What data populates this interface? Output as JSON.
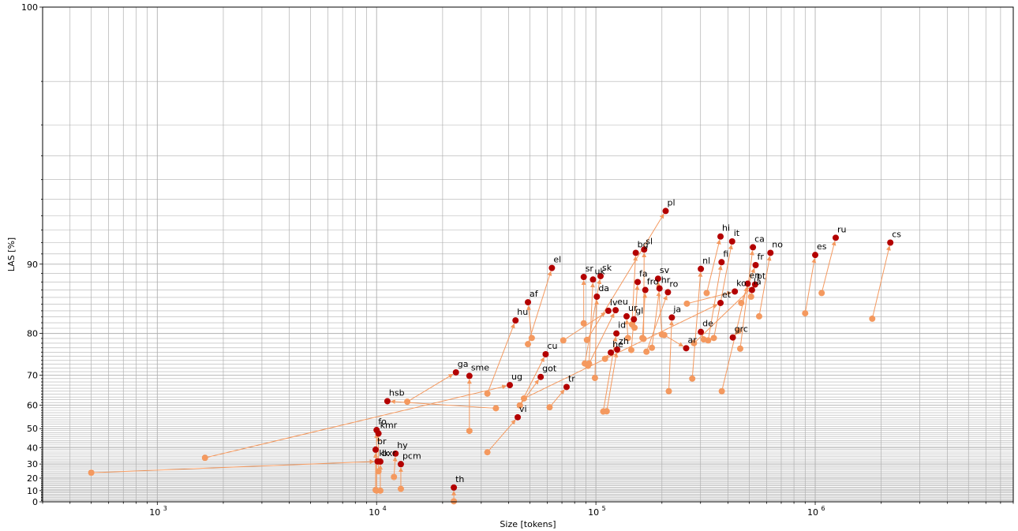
{
  "chart_data": {
    "type": "scatter",
    "title": "",
    "xlabel": "Size [tokens]",
    "ylabel": "LAS [%]",
    "xscale": "log",
    "yscale": "log-reversed",
    "xlim": [
      300,
      8000000
    ],
    "ylim": [
      0,
      100
    ],
    "grid": true,
    "legend": "none",
    "colors": {
      "before": "#f4995f",
      "after": "#b30000",
      "arrow": "#f4995f"
    },
    "x_ticks": [
      {
        "value": 1000,
        "base": "10",
        "exp": "3"
      },
      {
        "value": 10000,
        "base": "10",
        "exp": "4"
      },
      {
        "value": 100000,
        "base": "10",
        "exp": "5"
      },
      {
        "value": 1000000,
        "base": "10",
        "exp": "6"
      }
    ],
    "y_ticks": [
      {
        "value": 0,
        "label": "0"
      },
      {
        "value": 10,
        "label": "10"
      },
      {
        "value": 20,
        "label": "20"
      },
      {
        "value": 30,
        "label": "30"
      },
      {
        "value": 40,
        "label": "40"
      },
      {
        "value": 50,
        "label": "50"
      },
      {
        "value": 60,
        "label": "60"
      },
      {
        "value": 70,
        "label": "70"
      },
      {
        "value": 80,
        "label": "80"
      },
      {
        "value": 90,
        "label": "90"
      },
      {
        "value": 100,
        "label": "100"
      }
    ],
    "points": [
      {
        "label": "pl",
        "before": [
          91000,
          78.7
        ],
        "after": [
          208000,
          94.3
        ]
      },
      {
        "label": "sl",
        "before": [
          165000,
          78.9
        ],
        "after": [
          166000,
          91.4
        ]
      },
      {
        "label": "bg",
        "before": [
          146000,
          81.7
        ],
        "after": [
          152000,
          91.1
        ]
      },
      {
        "label": "hi",
        "before": [
          320000,
          86.6
        ],
        "after": [
          370000,
          92.5
        ]
      },
      {
        "label": "it",
        "before": [
          345000,
          79.1
        ],
        "after": [
          418000,
          92.1
        ]
      },
      {
        "label": "ca",
        "before": [
          455000,
          76.8
        ],
        "after": [
          520000,
          91.6
        ]
      },
      {
        "label": "no",
        "before": [
          555000,
          83.1
        ],
        "after": [
          625000,
          91.1
        ]
      },
      {
        "label": "ru",
        "before": [
          1070000,
          86.6
        ],
        "after": [
          1240000,
          92.4
        ]
      },
      {
        "label": "cs",
        "before": [
          1820000,
          82.7
        ],
        "after": [
          2200000,
          92.0
        ]
      },
      {
        "label": "es",
        "before": [
          900000,
          83.6
        ],
        "after": [
          1000000,
          90.9
        ]
      },
      {
        "label": "el",
        "before": [
          49000,
          77.8
        ],
        "after": [
          63000,
          89.6
        ]
      },
      {
        "label": "sr",
        "before": [
          88000,
          81.9
        ],
        "after": [
          88000,
          88.6
        ]
      },
      {
        "label": "uk",
        "before": [
          93000,
          73.2
        ],
        "after": [
          97000,
          88.3
        ]
      },
      {
        "label": "sk",
        "before": [
          89000,
          73.2
        ],
        "after": [
          105000,
          88.7
        ]
      },
      {
        "label": "da",
        "before": [
          99000,
          69.2
        ],
        "after": [
          101000,
          86.1
        ]
      },
      {
        "label": "fa",
        "before": [
          150000,
          81.1
        ],
        "after": [
          155000,
          88.0
        ]
      },
      {
        "label": "fro",
        "before": [
          163000,
          79.1
        ],
        "after": [
          168000,
          87.0
        ]
      },
      {
        "label": "sv",
        "before": [
          200000,
          79.8
        ],
        "after": [
          192000,
          88.4
        ]
      },
      {
        "label": "hr",
        "before": [
          180000,
          77.0
        ],
        "after": [
          195000,
          87.2
        ]
      },
      {
        "label": "ro",
        "before": [
          170000,
          76.1
        ],
        "after": [
          213000,
          86.7
        ]
      },
      {
        "label": "nl",
        "before": [
          275000,
          69.0
        ],
        "after": [
          301000,
          89.5
        ]
      },
      {
        "label": "fi",
        "before": [
          325000,
          78.6
        ],
        "after": [
          374000,
          90.2
        ]
      },
      {
        "label": "fr",
        "before": [
          460000,
          85.2
        ],
        "after": [
          535000,
          89.9
        ]
      },
      {
        "label": "pt",
        "before": [
          280000,
          78.0
        ],
        "after": [
          532000,
          87.7
        ]
      },
      {
        "label": "en",
        "before": [
          375000,
          65.0
        ],
        "after": [
          492000,
          87.8
        ]
      },
      {
        "label": "ko",
        "before": [
          260000,
          85.1
        ],
        "after": [
          430000,
          86.8
        ]
      },
      {
        "label": "la",
        "before": [
          510000,
          86.1
        ],
        "after": [
          515000,
          87.0
        ]
      },
      {
        "label": "et",
        "before": [
          47000,
          62.5
        ],
        "after": [
          370000,
          85.2
        ]
      },
      {
        "label": "af",
        "before": [
          51000,
          79.1
        ],
        "after": [
          49000,
          85.3
        ]
      },
      {
        "label": "hu",
        "before": [
          32000,
          64.2
        ],
        "after": [
          43000,
          82.4
        ]
      },
      {
        "label": "lv",
        "before": [
          71000,
          78.6
        ],
        "after": [
          114000,
          84.0
        ]
      },
      {
        "label": "eu",
        "before": [
          92000,
          72.6
        ],
        "after": [
          123000,
          84.1
        ]
      },
      {
        "label": "ur",
        "before": [
          140000,
          79.1
        ],
        "after": [
          138000,
          83.1
        ]
      },
      {
        "label": "gl",
        "before": [
          145000,
          76.5
        ],
        "after": [
          149000,
          82.6
        ]
      },
      {
        "label": "ja",
        "before": [
          215000,
          65.0
        ],
        "after": [
          222000,
          82.9
        ]
      },
      {
        "label": "id",
        "before": [
          108000,
          57.5
        ],
        "after": [
          124000,
          80.0
        ]
      },
      {
        "label": "de",
        "before": [
          310000,
          78.8
        ],
        "after": [
          301000,
          80.3
        ]
      },
      {
        "label": "grc",
        "before": [
          446000,
          80.5
        ],
        "after": [
          421000,
          79.2
        ]
      },
      {
        "label": "ar",
        "before": [
          205000,
          79.7
        ],
        "after": [
          258000,
          76.9
        ]
      },
      {
        "label": "he",
        "before": [
          110000,
          74.4
        ],
        "after": [
          117000,
          75.9
        ]
      },
      {
        "label": "zh",
        "before": [
          112000,
          57.6
        ],
        "after": [
          125000,
          76.6
        ]
      },
      {
        "label": "cu",
        "before": [
          45000,
          59.9
        ],
        "after": [
          59000,
          75.5
        ]
      },
      {
        "label": "got",
        "before": [
          45000,
          59.9
        ],
        "after": [
          56000,
          69.5
        ]
      },
      {
        "label": "ga",
        "before": [
          13800,
          61.3
        ],
        "after": [
          23000,
          70.8
        ]
      },
      {
        "label": "sme",
        "before": [
          26500,
          48.9
        ],
        "after": [
          26500,
          69.8
        ]
      },
      {
        "label": "ug",
        "before": [
          1650,
          34.0
        ],
        "after": [
          40500,
          67.0
        ]
      },
      {
        "label": "tr",
        "before": [
          61500,
          59.2
        ],
        "after": [
          73500,
          66.4
        ]
      },
      {
        "label": "hsb",
        "before": [
          35000,
          58.8
        ],
        "after": [
          11200,
          61.5
        ]
      },
      {
        "label": "vi",
        "before": [
          32000,
          37.4
        ],
        "after": [
          44000,
          55.1
        ]
      },
      {
        "label": "fo",
        "before": [
          10000,
          10.0
        ],
        "after": [
          10000,
          49.3
        ]
      },
      {
        "label": "kmr",
        "before": [
          10200,
          25.0
        ],
        "after": [
          10200,
          47.6
        ]
      },
      {
        "label": "br",
        "before": [
          9900,
          10.5
        ],
        "after": [
          9900,
          38.9
        ]
      },
      {
        "label": "hy",
        "before": [
          12000,
          20.9
        ],
        "after": [
          12200,
          36.6
        ]
      },
      {
        "label": "kk",
        "before": [
          500,
          24.0
        ],
        "after": [
          10100,
          31.7
        ]
      },
      {
        "label": "bxr",
        "before": [
          10400,
          10.0
        ],
        "after": [
          10400,
          31.6
        ]
      },
      {
        "label": "pcm",
        "before": [
          12900,
          11.5
        ],
        "after": [
          12900,
          29.9
        ]
      },
      {
        "label": "th",
        "before": [
          22500,
          0.5
        ],
        "after": [
          22500,
          12.6
        ]
      }
    ]
  }
}
